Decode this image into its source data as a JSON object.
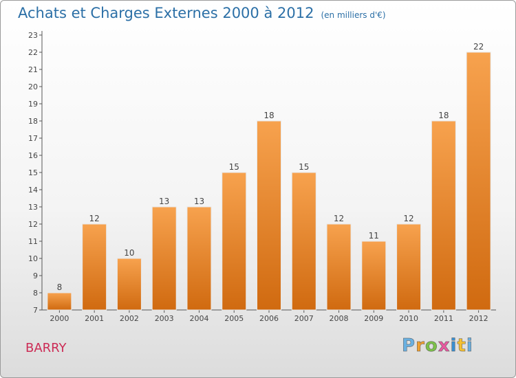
{
  "header": {
    "title": "Achats et Charges Externes 2000 à 2012",
    "subtitle": "(en milliers d'€)"
  },
  "footer": {
    "place_name": "BARRY",
    "logo_text": "Proxiti"
  },
  "colors": {
    "bar_light": "#f7a24e",
    "bar_dark": "#d06a10",
    "axis": "#555555",
    "title": "#2b6fa6",
    "place": "#cc2b55"
  },
  "chart_data": {
    "type": "bar",
    "title": "Achats et Charges Externes 2000 à 2012",
    "subtitle": "(en milliers d'€)",
    "categories": [
      "2000",
      "2001",
      "2002",
      "2003",
      "2004",
      "2005",
      "2006",
      "2007",
      "2008",
      "2009",
      "2010",
      "2011",
      "2012"
    ],
    "values": [
      8,
      12,
      10,
      13,
      13,
      15,
      18,
      15,
      12,
      11,
      12,
      18,
      22
    ],
    "ylim": [
      7,
      23
    ],
    "yticks": [
      7,
      8,
      9,
      10,
      11,
      12,
      13,
      14,
      15,
      16,
      17,
      18,
      19,
      20,
      21,
      22,
      23
    ],
    "grid": false,
    "data_labels": true
  }
}
